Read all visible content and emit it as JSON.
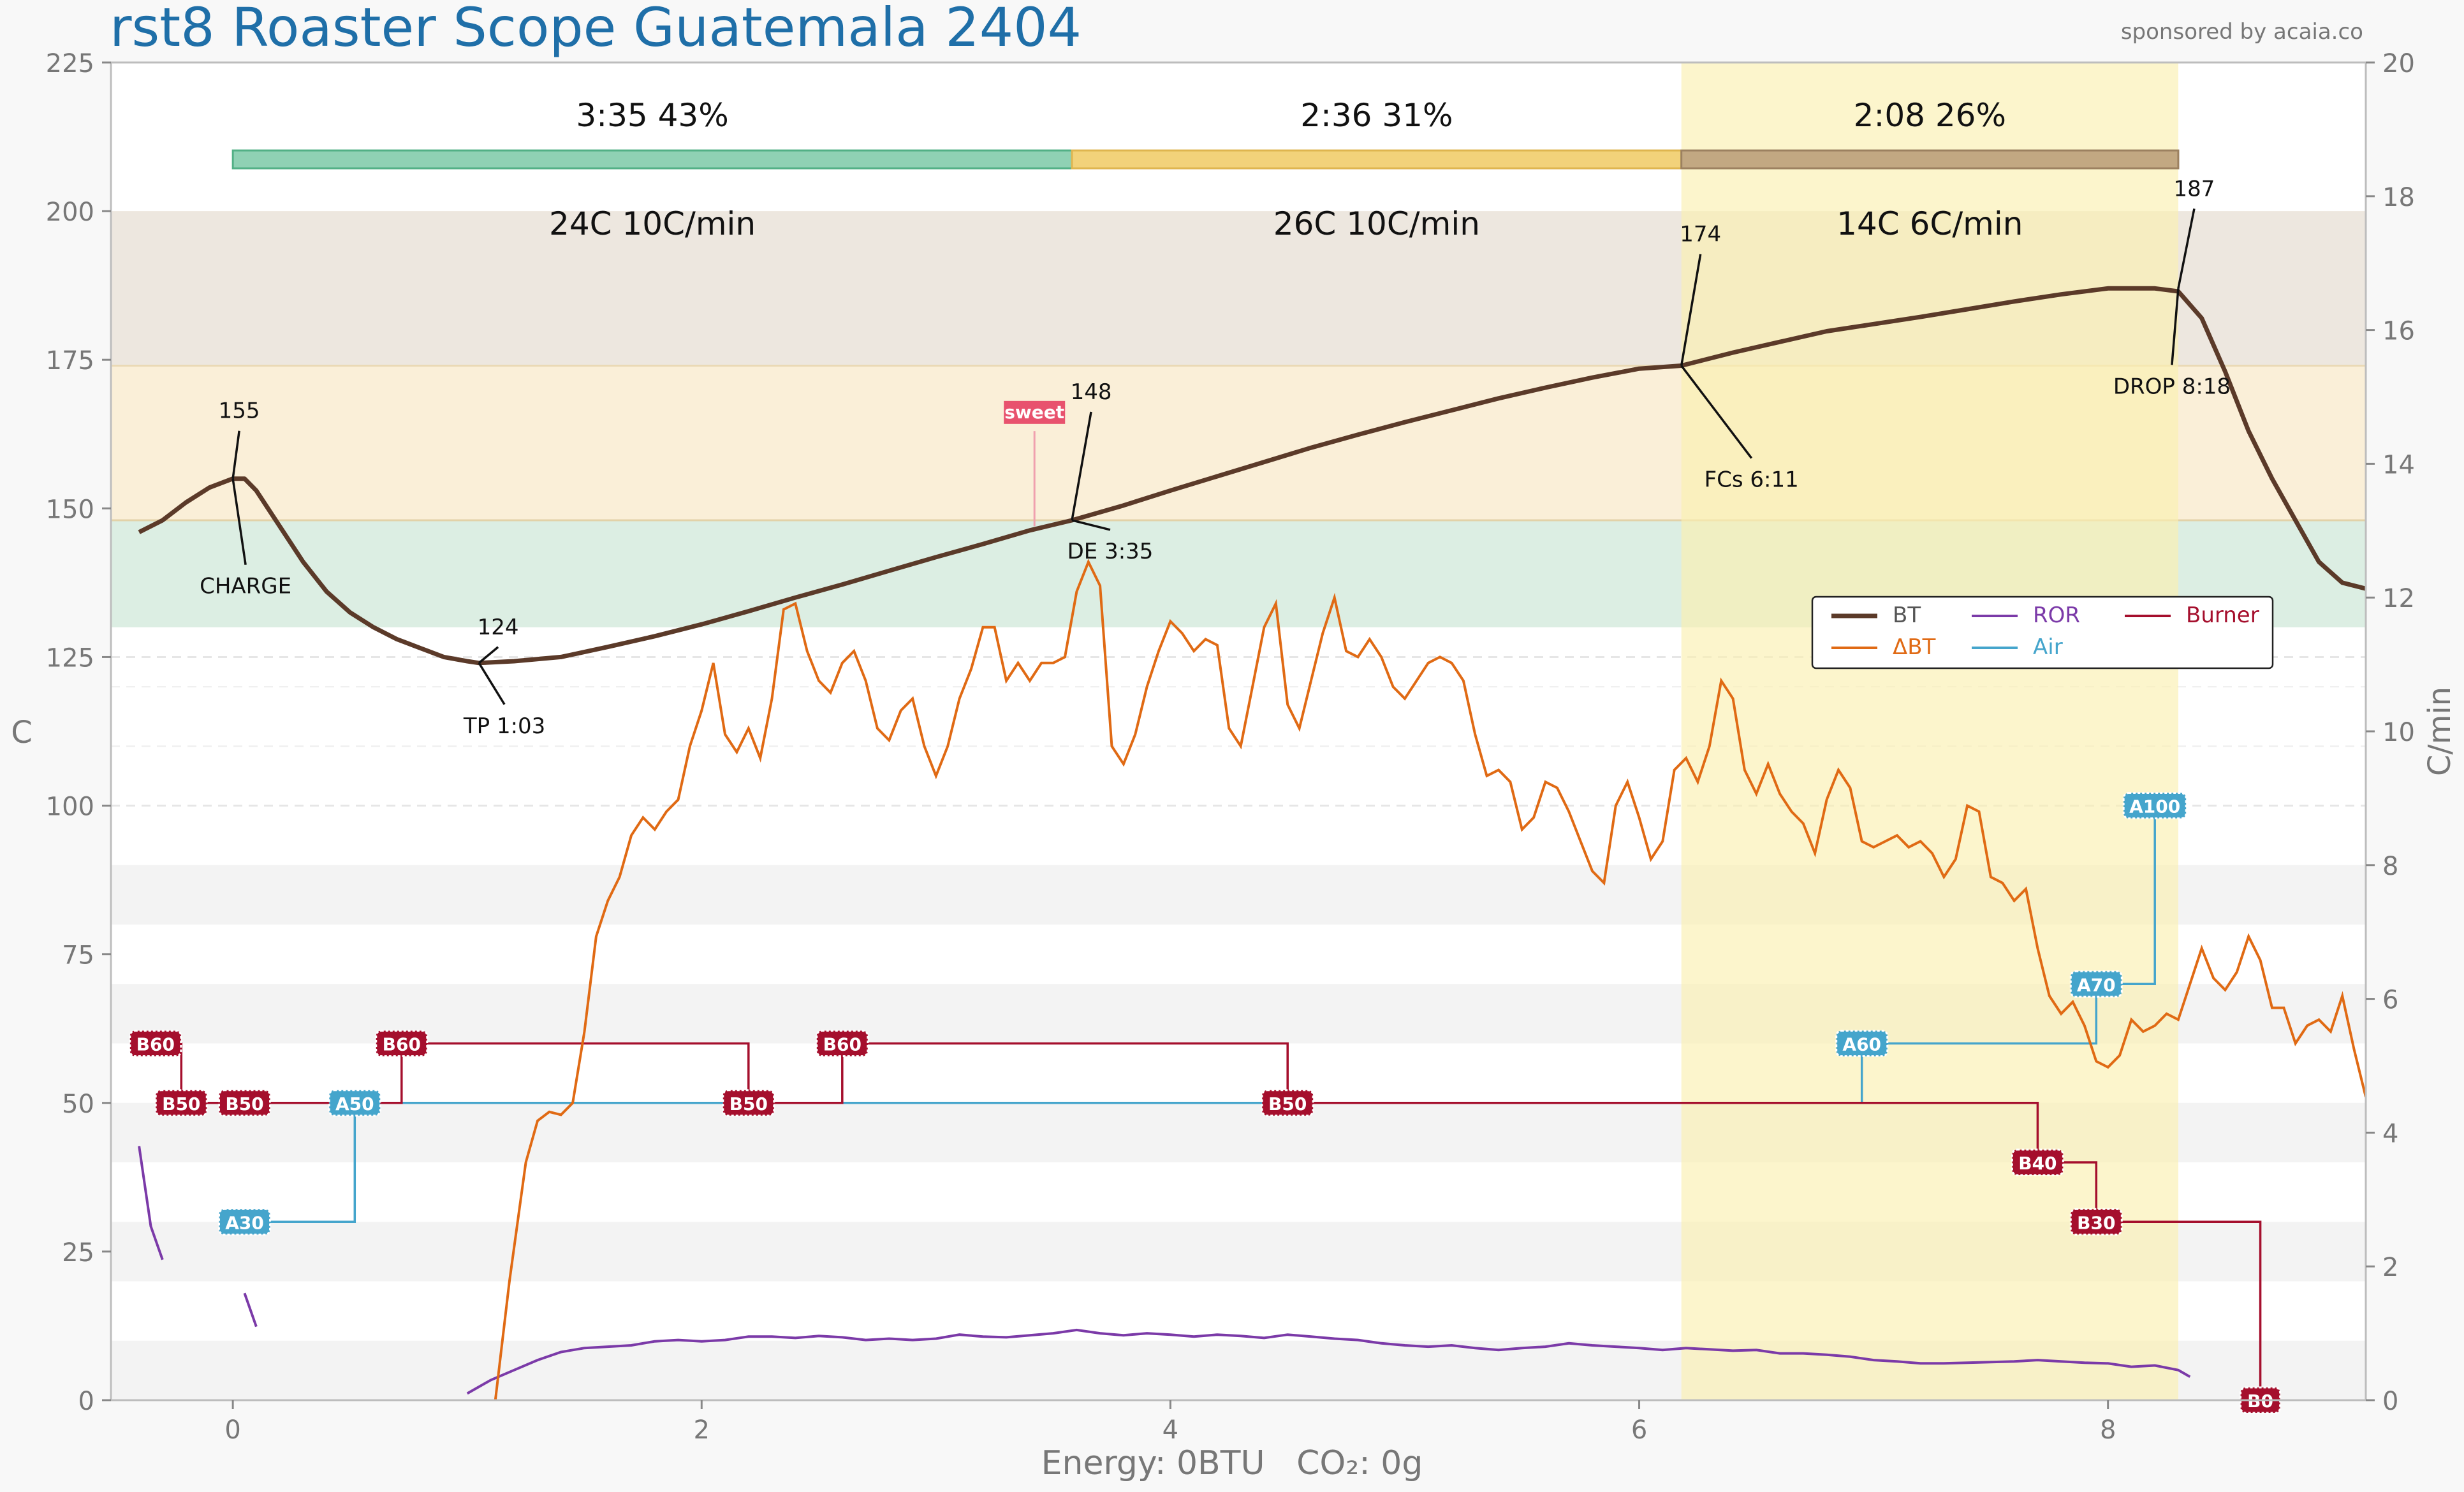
{
  "title": "rst8 Roaster Scope Guatemala 2404",
  "sponsor": "sponsored by acaia.co",
  "footer": {
    "energy": "Energy: 0BTU",
    "co2": "CO₂: 0g"
  },
  "colors": {
    "bt": "#5b3a29",
    "dbt": "#e06a14",
    "ror": "#7b3aa8",
    "air": "#45a5cc",
    "burner": "#a50f2d",
    "title": "#1f6fa8",
    "phase_dry": "#8fd1b4",
    "phase_maillard": "#f2d27a",
    "phase_dev": "#c2a882",
    "dev_shade": "#fbefb0",
    "accent_sweet": "#e8526e"
  },
  "chart_data": {
    "type": "line",
    "xlabel": "",
    "ylabel": "C",
    "y2label": "C/min",
    "xlim": [
      -0.52,
      9.1
    ],
    "ylim": [
      0,
      225
    ],
    "y2lim": [
      0,
      20
    ],
    "xticks": [
      0,
      2,
      4,
      6,
      8
    ],
    "yticks": [
      0,
      25,
      50,
      75,
      100,
      125,
      150,
      175,
      200,
      225
    ],
    "y2ticks": [
      0,
      2,
      4,
      6,
      8,
      10,
      12,
      14,
      16,
      18,
      20
    ],
    "legend_position": "right",
    "legend": [
      {
        "key": "bt",
        "label": "BT"
      },
      {
        "key": "ror",
        "label": "ROR"
      },
      {
        "key": "burner",
        "label": "Burner"
      },
      {
        "key": "dbt",
        "label": "ΔBT"
      },
      {
        "key": "air",
        "label": "Air"
      }
    ],
    "phases": [
      {
        "time": "3:35",
        "pct": "43%",
        "rise": "24C",
        "rate": "10C/min",
        "start": 0,
        "end": 3.58
      },
      {
        "time": "2:36",
        "pct": "31%",
        "rise": "26C",
        "rate": "10C/min",
        "start": 3.58,
        "end": 6.18
      },
      {
        "time": "2:08",
        "pct": "26%",
        "rise": "14C",
        "rate": "6C/min",
        "start": 6.18,
        "end": 8.3
      }
    ],
    "temp_bands": [
      {
        "from": 130,
        "to": 148,
        "color": "#dceee3"
      },
      {
        "from": 148,
        "to": 174,
        "color": "#faefd8"
      },
      {
        "from": 174,
        "to": 200,
        "color": "#ede7df"
      }
    ],
    "development_window": [
      6.18,
      8.3
    ],
    "bt": [
      [
        -0.4,
        146
      ],
      [
        -0.3,
        148
      ],
      [
        -0.2,
        151
      ],
      [
        -0.1,
        153.5
      ],
      [
        0,
        155
      ],
      [
        0.05,
        155
      ],
      [
        0.1,
        153
      ],
      [
        0.2,
        147
      ],
      [
        0.3,
        141
      ],
      [
        0.4,
        136
      ],
      [
        0.5,
        132.5
      ],
      [
        0.6,
        130
      ],
      [
        0.7,
        128
      ],
      [
        0.8,
        126.5
      ],
      [
        0.9,
        125
      ],
      [
        1.0,
        124.3
      ],
      [
        1.05,
        124
      ],
      [
        1.2,
        124.3
      ],
      [
        1.4,
        125
      ],
      [
        1.6,
        126.7
      ],
      [
        1.8,
        128.5
      ],
      [
        2.0,
        130.5
      ],
      [
        2.2,
        132.7
      ],
      [
        2.4,
        135
      ],
      [
        2.6,
        137.2
      ],
      [
        2.8,
        139.5
      ],
      [
        3.0,
        141.8
      ],
      [
        3.2,
        144
      ],
      [
        3.4,
        146.3
      ],
      [
        3.58,
        148
      ],
      [
        3.8,
        150.5
      ],
      [
        4.0,
        153
      ],
      [
        4.2,
        155.4
      ],
      [
        4.4,
        157.8
      ],
      [
        4.6,
        160.2
      ],
      [
        4.8,
        162.4
      ],
      [
        5.0,
        164.5
      ],
      [
        5.2,
        166.5
      ],
      [
        5.4,
        168.5
      ],
      [
        5.6,
        170.3
      ],
      [
        5.8,
        172
      ],
      [
        6.0,
        173.5
      ],
      [
        6.18,
        174
      ],
      [
        6.4,
        176.2
      ],
      [
        6.6,
        178
      ],
      [
        6.8,
        179.8
      ],
      [
        7.0,
        181
      ],
      [
        7.2,
        182.2
      ],
      [
        7.4,
        183.5
      ],
      [
        7.6,
        184.8
      ],
      [
        7.8,
        186
      ],
      [
        8.0,
        187
      ],
      [
        8.2,
        187
      ],
      [
        8.3,
        186.5
      ],
      [
        8.4,
        182
      ],
      [
        8.5,
        173
      ],
      [
        8.6,
        163
      ],
      [
        8.7,
        155
      ],
      [
        8.8,
        148
      ],
      [
        8.9,
        141
      ],
      [
        9.0,
        137.5
      ],
      [
        9.1,
        136.5
      ]
    ],
    "dbt": [
      [
        1.12,
        0
      ],
      [
        1.18,
        20
      ],
      [
        1.25,
        40
      ],
      [
        1.3,
        47
      ],
      [
        1.35,
        48.5
      ],
      [
        1.4,
        48
      ],
      [
        1.45,
        50
      ],
      [
        1.5,
        62
      ],
      [
        1.55,
        78
      ],
      [
        1.6,
        84
      ],
      [
        1.65,
        88
      ],
      [
        1.7,
        95
      ],
      [
        1.75,
        98
      ],
      [
        1.8,
        96
      ],
      [
        1.85,
        99
      ],
      [
        1.9,
        101
      ],
      [
        1.95,
        110
      ],
      [
        2.0,
        116
      ],
      [
        2.05,
        124
      ],
      [
        2.1,
        112
      ],
      [
        2.15,
        109
      ],
      [
        2.2,
        113
      ],
      [
        2.25,
        108
      ],
      [
        2.3,
        118
      ],
      [
        2.35,
        133
      ],
      [
        2.4,
        134
      ],
      [
        2.45,
        126
      ],
      [
        2.5,
        121
      ],
      [
        2.55,
        119
      ],
      [
        2.6,
        124
      ],
      [
        2.65,
        126
      ],
      [
        2.7,
        121
      ],
      [
        2.75,
        113
      ],
      [
        2.8,
        111
      ],
      [
        2.85,
        116
      ],
      [
        2.9,
        118
      ],
      [
        2.95,
        110
      ],
      [
        3.0,
        105
      ],
      [
        3.05,
        110
      ],
      [
        3.1,
        118
      ],
      [
        3.15,
        123
      ],
      [
        3.2,
        130
      ],
      [
        3.25,
        130
      ],
      [
        3.3,
        121
      ],
      [
        3.35,
        124
      ],
      [
        3.4,
        121
      ],
      [
        3.45,
        124
      ],
      [
        3.5,
        124
      ],
      [
        3.55,
        125
      ],
      [
        3.6,
        136
      ],
      [
        3.65,
        141
      ],
      [
        3.7,
        137
      ],
      [
        3.75,
        110
      ],
      [
        3.8,
        107
      ],
      [
        3.85,
        112
      ],
      [
        3.9,
        120
      ],
      [
        3.95,
        126
      ],
      [
        4.0,
        131
      ],
      [
        4.05,
        129
      ],
      [
        4.1,
        126
      ],
      [
        4.15,
        128
      ],
      [
        4.2,
        127
      ],
      [
        4.25,
        113
      ],
      [
        4.3,
        110
      ],
      [
        4.35,
        120
      ],
      [
        4.4,
        130
      ],
      [
        4.45,
        134
      ],
      [
        4.5,
        117
      ],
      [
        4.55,
        113
      ],
      [
        4.6,
        121
      ],
      [
        4.65,
        129
      ],
      [
        4.7,
        135
      ],
      [
        4.75,
        126
      ],
      [
        4.8,
        125
      ],
      [
        4.85,
        128
      ],
      [
        4.9,
        125
      ],
      [
        4.95,
        120
      ],
      [
        5.0,
        118
      ],
      [
        5.05,
        121
      ],
      [
        5.1,
        124
      ],
      [
        5.15,
        125
      ],
      [
        5.2,
        124
      ],
      [
        5.25,
        121
      ],
      [
        5.3,
        112
      ],
      [
        5.35,
        105
      ],
      [
        5.4,
        106
      ],
      [
        5.45,
        104
      ],
      [
        5.5,
        96
      ],
      [
        5.55,
        98
      ],
      [
        5.6,
        104
      ],
      [
        5.65,
        103
      ],
      [
        5.7,
        99
      ],
      [
        5.75,
        94
      ],
      [
        5.8,
        89
      ],
      [
        5.85,
        87
      ],
      [
        5.9,
        100
      ],
      [
        5.95,
        104
      ],
      [
        6.0,
        98
      ],
      [
        6.05,
        91
      ],
      [
        6.1,
        94
      ],
      [
        6.15,
        106
      ],
      [
        6.2,
        108
      ],
      [
        6.25,
        104
      ],
      [
        6.3,
        110
      ],
      [
        6.35,
        121
      ],
      [
        6.4,
        118
      ],
      [
        6.45,
        106
      ],
      [
        6.5,
        102
      ],
      [
        6.55,
        107
      ],
      [
        6.6,
        102
      ],
      [
        6.65,
        99
      ],
      [
        6.7,
        97
      ],
      [
        6.75,
        92
      ],
      [
        6.8,
        101
      ],
      [
        6.85,
        106
      ],
      [
        6.9,
        103
      ],
      [
        6.95,
        94
      ],
      [
        7.0,
        93
      ],
      [
        7.05,
        94
      ],
      [
        7.1,
        95
      ],
      [
        7.15,
        93
      ],
      [
        7.2,
        94
      ],
      [
        7.25,
        92
      ],
      [
        7.3,
        88
      ],
      [
        7.35,
        91
      ],
      [
        7.4,
        100
      ],
      [
        7.45,
        99
      ],
      [
        7.5,
        88
      ],
      [
        7.55,
        87
      ],
      [
        7.6,
        84
      ],
      [
        7.65,
        86
      ],
      [
        7.7,
        76
      ],
      [
        7.75,
        68
      ],
      [
        7.8,
        65
      ],
      [
        7.85,
        67
      ],
      [
        7.9,
        63
      ],
      [
        7.95,
        57
      ],
      [
        8.0,
        56
      ],
      [
        8.05,
        58
      ],
      [
        8.1,
        64
      ],
      [
        8.15,
        62
      ],
      [
        8.2,
        63
      ],
      [
        8.25,
        65
      ],
      [
        8.3,
        64
      ],
      [
        8.35,
        70
      ],
      [
        8.4,
        76
      ],
      [
        8.45,
        71
      ],
      [
        8.5,
        69
      ],
      [
        8.55,
        72
      ],
      [
        8.6,
        78
      ],
      [
        8.65,
        74
      ],
      [
        8.7,
        66
      ],
      [
        8.75,
        66
      ],
      [
        8.8,
        60
      ],
      [
        8.85,
        63
      ],
      [
        8.9,
        64
      ],
      [
        8.95,
        62
      ],
      [
        9.0,
        68
      ],
      [
        9.05,
        59
      ],
      [
        9.1,
        51
      ]
    ],
    "ror_segments": [
      [
        [
          -0.4,
          3.8
        ],
        [
          -0.35,
          2.6
        ],
        [
          -0.3,
          2.1
        ]
      ],
      [
        [
          0.05,
          1.6
        ],
        [
          0.1,
          1.1
        ]
      ],
      [
        [
          1.0,
          0.1
        ],
        [
          1.1,
          0.3
        ],
        [
          1.2,
          0.45
        ],
        [
          1.3,
          0.6
        ],
        [
          1.4,
          0.72
        ],
        [
          1.5,
          0.78
        ],
        [
          1.6,
          0.8
        ],
        [
          1.7,
          0.82
        ],
        [
          1.8,
          0.88
        ],
        [
          1.9,
          0.9
        ],
        [
          2.0,
          0.88
        ],
        [
          2.1,
          0.9
        ],
        [
          2.2,
          0.95
        ],
        [
          2.3,
          0.95
        ],
        [
          2.4,
          0.93
        ],
        [
          2.5,
          0.96
        ],
        [
          2.6,
          0.94
        ],
        [
          2.7,
          0.9
        ],
        [
          2.8,
          0.92
        ],
        [
          2.9,
          0.9
        ],
        [
          3.0,
          0.92
        ],
        [
          3.1,
          0.98
        ],
        [
          3.2,
          0.95
        ],
        [
          3.3,
          0.94
        ],
        [
          3.4,
          0.97
        ],
        [
          3.5,
          1.0
        ],
        [
          3.6,
          1.05
        ],
        [
          3.7,
          1.0
        ],
        [
          3.8,
          0.97
        ],
        [
          3.9,
          1.0
        ],
        [
          4.0,
          0.98
        ],
        [
          4.1,
          0.95
        ],
        [
          4.2,
          0.98
        ],
        [
          4.3,
          0.96
        ],
        [
          4.4,
          0.93
        ],
        [
          4.5,
          0.98
        ],
        [
          4.6,
          0.95
        ],
        [
          4.7,
          0.92
        ],
        [
          4.8,
          0.9
        ],
        [
          4.9,
          0.85
        ],
        [
          5.0,
          0.82
        ],
        [
          5.1,
          0.8
        ],
        [
          5.2,
          0.82
        ],
        [
          5.3,
          0.78
        ],
        [
          5.4,
          0.75
        ],
        [
          5.5,
          0.78
        ],
        [
          5.6,
          0.8
        ],
        [
          5.7,
          0.85
        ],
        [
          5.8,
          0.82
        ],
        [
          5.9,
          0.8
        ],
        [
          6.0,
          0.78
        ],
        [
          6.1,
          0.75
        ],
        [
          6.2,
          0.78
        ],
        [
          6.3,
          0.76
        ],
        [
          6.4,
          0.74
        ],
        [
          6.5,
          0.75
        ],
        [
          6.6,
          0.7
        ],
        [
          6.7,
          0.7
        ],
        [
          6.8,
          0.68
        ],
        [
          6.9,
          0.65
        ],
        [
          7.0,
          0.6
        ],
        [
          7.1,
          0.58
        ],
        [
          7.2,
          0.55
        ],
        [
          7.3,
          0.55
        ],
        [
          7.4,
          0.56
        ],
        [
          7.5,
          0.57
        ],
        [
          7.6,
          0.58
        ],
        [
          7.7,
          0.6
        ],
        [
          7.8,
          0.58
        ],
        [
          7.9,
          0.56
        ],
        [
          8.0,
          0.55
        ],
        [
          8.1,
          0.5
        ],
        [
          8.2,
          0.52
        ],
        [
          8.3,
          0.45
        ],
        [
          8.35,
          0.35
        ]
      ]
    ],
    "air_steps": [
      [
        0.0,
        30
      ],
      [
        0.52,
        30
      ],
      [
        0.52,
        50
      ],
      [
        6.95,
        50
      ],
      [
        6.95,
        60
      ],
      [
        7.95,
        60
      ],
      [
        7.95,
        70
      ],
      [
        8.2,
        70
      ],
      [
        8.2,
        100
      ]
    ],
    "burner_steps": [
      [
        -0.33,
        60
      ],
      [
        -0.22,
        60
      ],
      [
        -0.22,
        50
      ],
      [
        0.72,
        50
      ],
      [
        0.72,
        60
      ],
      [
        2.2,
        60
      ],
      [
        2.2,
        50
      ],
      [
        2.6,
        50
      ],
      [
        2.6,
        60
      ],
      [
        4.5,
        60
      ],
      [
        4.5,
        50
      ],
      [
        7.7,
        50
      ],
      [
        7.7,
        40
      ],
      [
        7.95,
        40
      ],
      [
        7.95,
        30
      ],
      [
        8.65,
        30
      ],
      [
        8.65,
        0
      ]
    ],
    "air_labels": [
      {
        "text": "A30",
        "x": 0.05,
        "y": 30
      },
      {
        "text": "A50",
        "x": 0.52,
        "y": 50
      },
      {
        "text": "A60",
        "x": 6.95,
        "y": 60
      },
      {
        "text": "A70",
        "x": 7.95,
        "y": 70
      },
      {
        "text": "A100",
        "x": 8.2,
        "y": 100
      }
    ],
    "burner_labels": [
      {
        "text": "B60",
        "x": -0.33,
        "y": 60
      },
      {
        "text": "B50",
        "x": -0.22,
        "y": 50
      },
      {
        "text": "B50",
        "x": 0.05,
        "y": 50
      },
      {
        "text": "B60",
        "x": 0.72,
        "y": 60
      },
      {
        "text": "B50",
        "x": 2.2,
        "y": 50
      },
      {
        "text": "B60",
        "x": 2.6,
        "y": 60
      },
      {
        "text": "B50",
        "x": 4.5,
        "y": 50
      },
      {
        "text": "B40",
        "x": 7.7,
        "y": 40
      },
      {
        "text": "B30",
        "x": 7.95,
        "y": 30
      },
      {
        "text": "B0",
        "x": 8.65,
        "y": 0
      }
    ],
    "events": [
      {
        "label": "CHARGE",
        "value": "155",
        "x": 0.0,
        "y": 155
      },
      {
        "label": "TP 1:03",
        "value": "124",
        "x": 1.05,
        "y": 124
      },
      {
        "label": "DE 3:35",
        "value": "148",
        "x": 3.58,
        "y": 148
      },
      {
        "label": "FCs 6:11",
        "value": "174",
        "x": 6.18,
        "y": 174
      },
      {
        "label": "DROP 8:18",
        "value": "187",
        "x": 8.3,
        "y": 187
      }
    ],
    "sweet_marker": {
      "label": "sweet",
      "x": 3.42
    }
  }
}
